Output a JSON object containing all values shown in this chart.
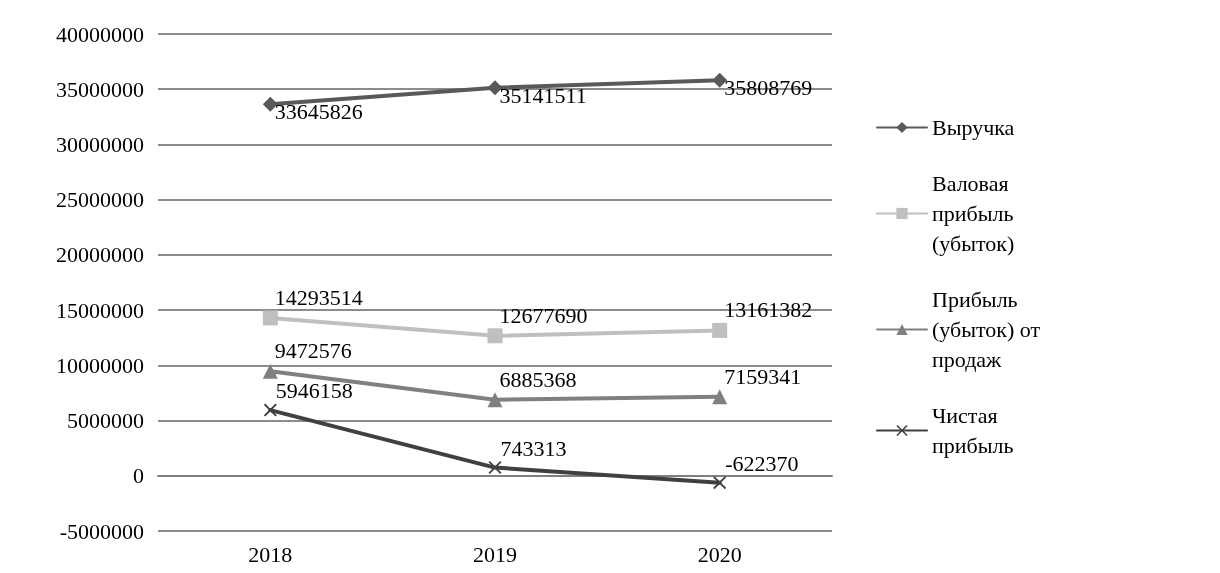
{
  "chart_data": {
    "type": "line",
    "categories": [
      "2018",
      "2019",
      "2020"
    ],
    "series": [
      {
        "name": "Выручка",
        "color": "#595959",
        "marker": "diamond",
        "values": [
          33645826,
          35141511,
          35808769
        ]
      },
      {
        "name": "Валовая прибыль (убыток)",
        "color": "#bfbfbf",
        "marker": "square",
        "values": [
          14293514,
          12677690,
          13161382
        ]
      },
      {
        "name": "Прибыль (убыток) от продаж",
        "color": "#808080",
        "marker": "triangle",
        "values": [
          9472576,
          6885368,
          7159341
        ]
      },
      {
        "name": "Чистая прибыль",
        "color": "#404040",
        "marker": "cross",
        "values": [
          5946158,
          743313,
          -622370
        ]
      }
    ],
    "ylim": [
      -5000000,
      40000000
    ],
    "yticks": [
      -5000000,
      0,
      5000000,
      10000000,
      15000000,
      20000000,
      25000000,
      30000000,
      35000000,
      40000000
    ],
    "grid": "y",
    "legend": "right",
    "data_labels": true
  }
}
